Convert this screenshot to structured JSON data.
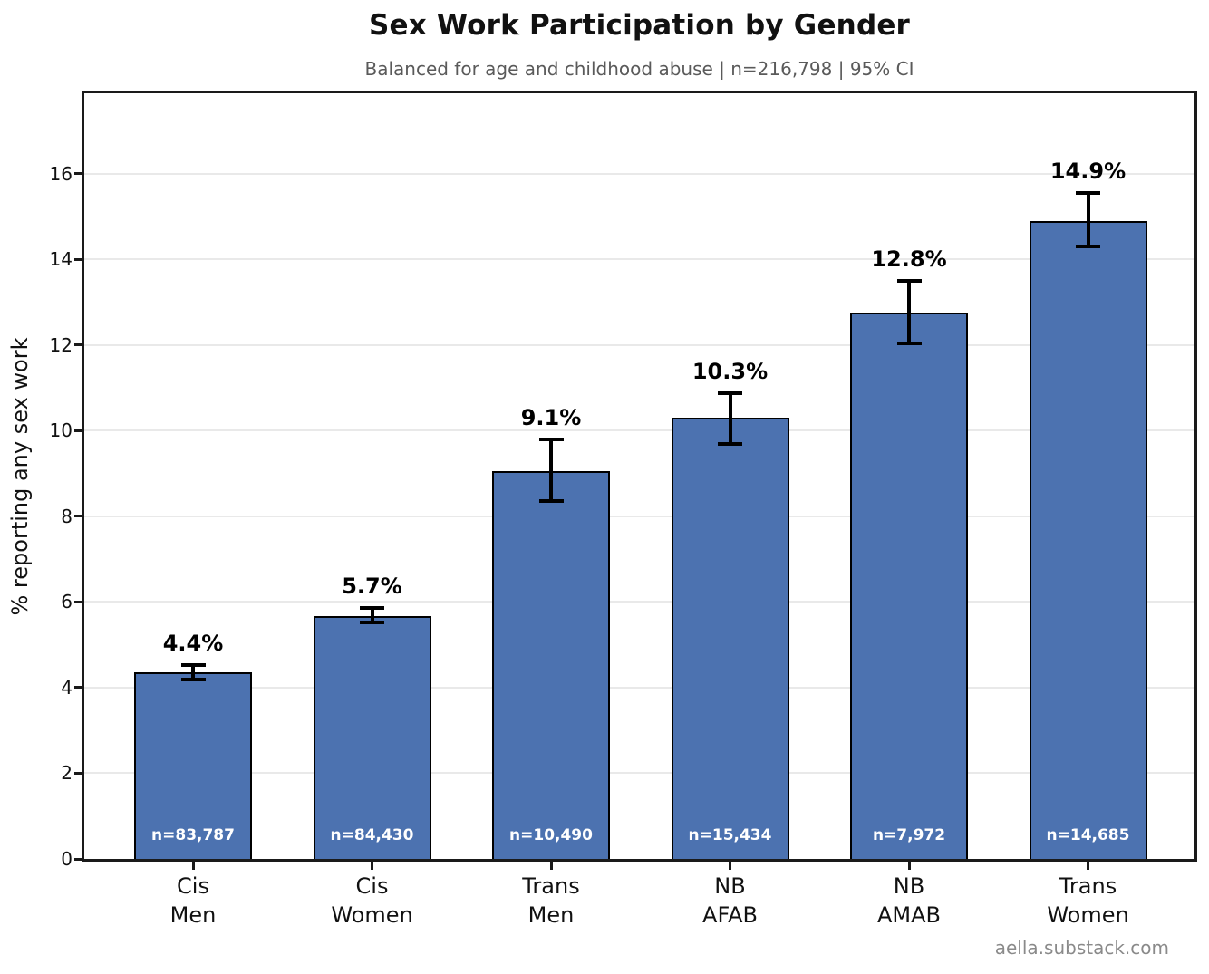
{
  "header": {
    "title": "Sex Work Participation by Gender",
    "subtitle": "Balanced for age and childhood abuse  |  n=216,798  |  95% CI"
  },
  "footer": {
    "credit": "aella.substack.com"
  },
  "chart_data": {
    "type": "bar",
    "title": "Sex Work Participation by Gender",
    "subtitle": "Balanced for age and childhood abuse  |  n=216,798  |  95% CI",
    "xlabel": "",
    "ylabel": "% reporting any sex work",
    "ylim": [
      0,
      17.88
    ],
    "yticks": [
      0,
      2,
      4,
      6,
      8,
      10,
      12,
      14,
      16
    ],
    "grid": "horizontal",
    "legend": "none",
    "bar_color": "#4C72B0",
    "bar_edge_color": "#000000",
    "error_bar_color": "#000000",
    "categories": [
      [
        "Cis",
        "Men"
      ],
      [
        "Cis",
        "Women"
      ],
      [
        "Trans",
        "Men"
      ],
      [
        "NB",
        "AFAB"
      ],
      [
        "NB",
        "AMAB"
      ],
      [
        "Trans",
        "Women"
      ]
    ],
    "values": [
      4.35,
      5.68,
      9.05,
      10.3,
      12.77,
      14.9
    ],
    "value_labels": [
      "4.4%",
      "5.7%",
      "9.1%",
      "10.3%",
      "12.8%",
      "14.9%"
    ],
    "ci_low": [
      4.18,
      5.53,
      8.35,
      9.7,
      12.05,
      14.3
    ],
    "ci_high": [
      4.52,
      5.86,
      9.8,
      10.87,
      13.5,
      15.55
    ],
    "n_labels": [
      "n=83,787",
      "n=84,430",
      "n=10,490",
      "n=15,434",
      "n=7,972",
      "n=14,685"
    ]
  }
}
